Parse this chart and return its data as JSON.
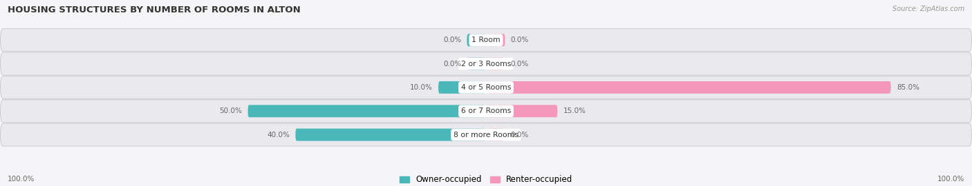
{
  "title": "HOUSING STRUCTURES BY NUMBER OF ROOMS IN ALTON",
  "source": "Source: ZipAtlas.com",
  "categories": [
    "1 Room",
    "2 or 3 Rooms",
    "4 or 5 Rooms",
    "6 or 7 Rooms",
    "8 or more Rooms"
  ],
  "owner_values": [
    0.0,
    0.0,
    10.0,
    50.0,
    40.0
  ],
  "renter_values": [
    0.0,
    0.0,
    85.0,
    15.0,
    0.0
  ],
  "owner_color": "#4ab8b8",
  "renter_color": "#f497b8",
  "bar_bg_color": "#eaeaee",
  "bar_border_color": "#cccccc",
  "axis_max": 100.0,
  "label_color": "#666666",
  "title_color": "#333333",
  "legend_owner": "Owner-occupied",
  "legend_renter": "Renter-occupied",
  "bottom_axis_left": "100.0%",
  "bottom_axis_right": "100.0%",
  "min_bar_stub": 4.0
}
